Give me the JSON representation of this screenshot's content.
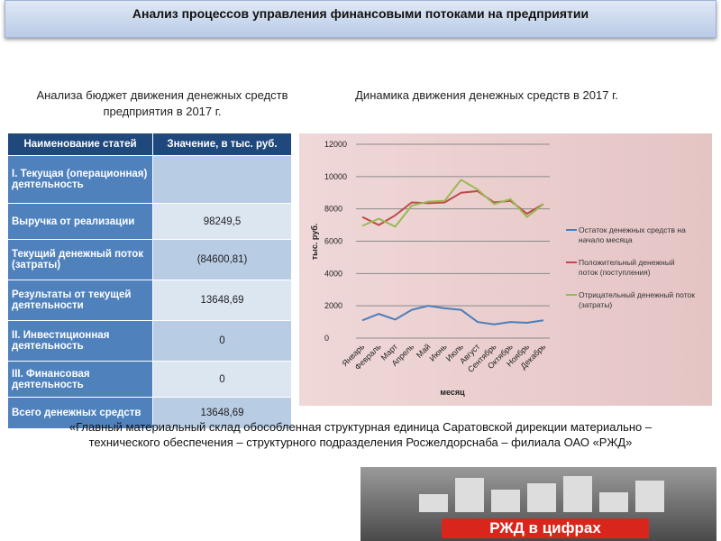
{
  "header": {
    "title": "Анализ процессов управления финансовыми потоками на предприятии"
  },
  "left_caption": "Анализа бюджет движения денежных средств предприятия в 2017 г.",
  "table": {
    "columns": [
      "Наименование статей",
      "Значение, в тыс. руб."
    ],
    "rows": [
      [
        "I. Текущая (операционная) деятельность",
        ""
      ],
      [
        "Выручка от реализации",
        "98249,5"
      ],
      [
        "Текущий денежный поток (затраты)",
        "(84600,81)"
      ],
      [
        "Результаты от текущей деятельности",
        "13648,69"
      ],
      [
        "II. Инвестиционная деятельность",
        "0"
      ],
      [
        "III. Финансовая деятельность",
        "0"
      ],
      [
        "Всего денежных средств",
        "13648,69"
      ]
    ]
  },
  "chart_data": {
    "type": "line",
    "title": "Динамика движения денежных средств в 2017 г.",
    "y_label": "тыс. руб.",
    "x_label": "месяц",
    "categories": [
      "Январь",
      "Февраль",
      "Март",
      "Апрель",
      "Май",
      "Июнь",
      "Июль",
      "Август",
      "Сентябрь",
      "Октябрь",
      "Ноябрь",
      "Декабрь"
    ],
    "ylim": [
      0,
      12000
    ],
    "yticks": [
      0,
      2000,
      4000,
      6000,
      8000,
      10000,
      12000
    ],
    "grid": true,
    "series": [
      {
        "name": "Остаток денежных средств на начало месяца",
        "color": "#4a7ebb",
        "values": [
          1100,
          1500,
          1150,
          1750,
          2000,
          1850,
          1750,
          1000,
          850,
          1000,
          950,
          1100
        ]
      },
      {
        "name": "Положительный денежный поток (поступления)",
        "color": "#be4b48",
        "values": [
          7500,
          7000,
          7600,
          8400,
          8350,
          8400,
          9000,
          9100,
          8400,
          8500,
          7700,
          8300
        ]
      },
      {
        "name": "Отрицательный денежный поток (затраты)",
        "color": "#98b954",
        "values": [
          6950,
          7400,
          6900,
          8200,
          8450,
          8500,
          9800,
          9200,
          8300,
          8600,
          7500,
          8300
        ]
      }
    ]
  },
  "footer": "«Главный материальный склад обособленная структурная единица Саратовской дирекции материально – технического обеспечения – структурного подразделения Росжелдорснаба – филиала ОАО «РЖД»",
  "banner": "РЖД в цифрах"
}
